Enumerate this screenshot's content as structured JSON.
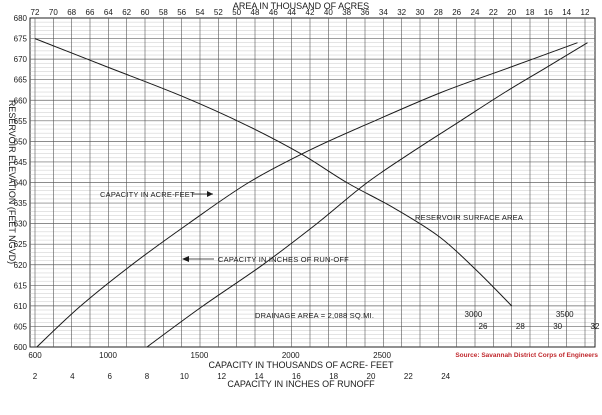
{
  "chart_data": {
    "type": "line",
    "top_axis": {
      "label": "AREA IN THOUSAND OF ACRES",
      "range": [
        72,
        12
      ],
      "ticks": [
        72,
        70,
        68,
        66,
        64,
        62,
        60,
        58,
        56,
        54,
        52,
        50,
        48,
        46,
        44,
        42,
        40,
        38,
        36,
        34,
        32,
        30,
        28,
        26,
        24,
        22,
        20,
        18,
        16,
        14,
        12
      ]
    },
    "left_axis": {
      "label": "RESERVOIR ELEVATION (FEET NGVD)",
      "range": [
        600,
        680
      ],
      "ticks": [
        600,
        605,
        610,
        615,
        620,
        625,
        630,
        635,
        640,
        645,
        650,
        655,
        660,
        665,
        670,
        675,
        680
      ]
    },
    "bottom_axis_acre_feet": {
      "label": "CAPACITY IN  THOUSANDS OF ACRE- FEET",
      "range": [
        600,
        3600
      ],
      "ticks": [
        600,
        1000,
        1500,
        2000,
        2500,
        3000,
        3500
      ]
    },
    "bottom_axis_runoff": {
      "label": "CAPACITY IN  INCHES OF RUNOFF",
      "range": [
        2,
        32
      ],
      "ticks": [
        2,
        4,
        6,
        8,
        10,
        12,
        14,
        16,
        18,
        20,
        22,
        24,
        26,
        28,
        30,
        32
      ]
    },
    "series": [
      {
        "name": "CAPACITY  IN  ACRE-FEET",
        "axis": "acre_feet",
        "x": [
          610,
          850,
          1130,
          1440,
          1770,
          2110,
          2460,
          2830,
          3200,
          3570
        ],
        "y": [
          600,
          610,
          620,
          630,
          640,
          648,
          655,
          662,
          668,
          674
        ]
      },
      {
        "name": "CAPACITY IN INCHES OF RUN-OFF",
        "axis": "runoff",
        "x": [
          8.0,
          11.0,
          14.2,
          17.1,
          19.8,
          22.4,
          24.8,
          27.2,
          29.4,
          31.6
        ],
        "y": [
          600,
          610,
          620,
          630,
          640,
          648,
          655,
          662,
          668,
          674
        ]
      },
      {
        "name": "RESERVOIR SURFACE AREA",
        "axis": "area",
        "x": [
          72,
          64,
          56,
          49,
          43,
          38,
          33,
          28,
          24,
          20
        ],
        "y": [
          675,
          668,
          661,
          654,
          647,
          640,
          634,
          627,
          619,
          610
        ]
      }
    ],
    "annotations": [
      "DRAINAGE AREA = 2,088 SQ.MI."
    ],
    "source": "Source:  Savannah District Corps of Engineers",
    "grid": true
  }
}
